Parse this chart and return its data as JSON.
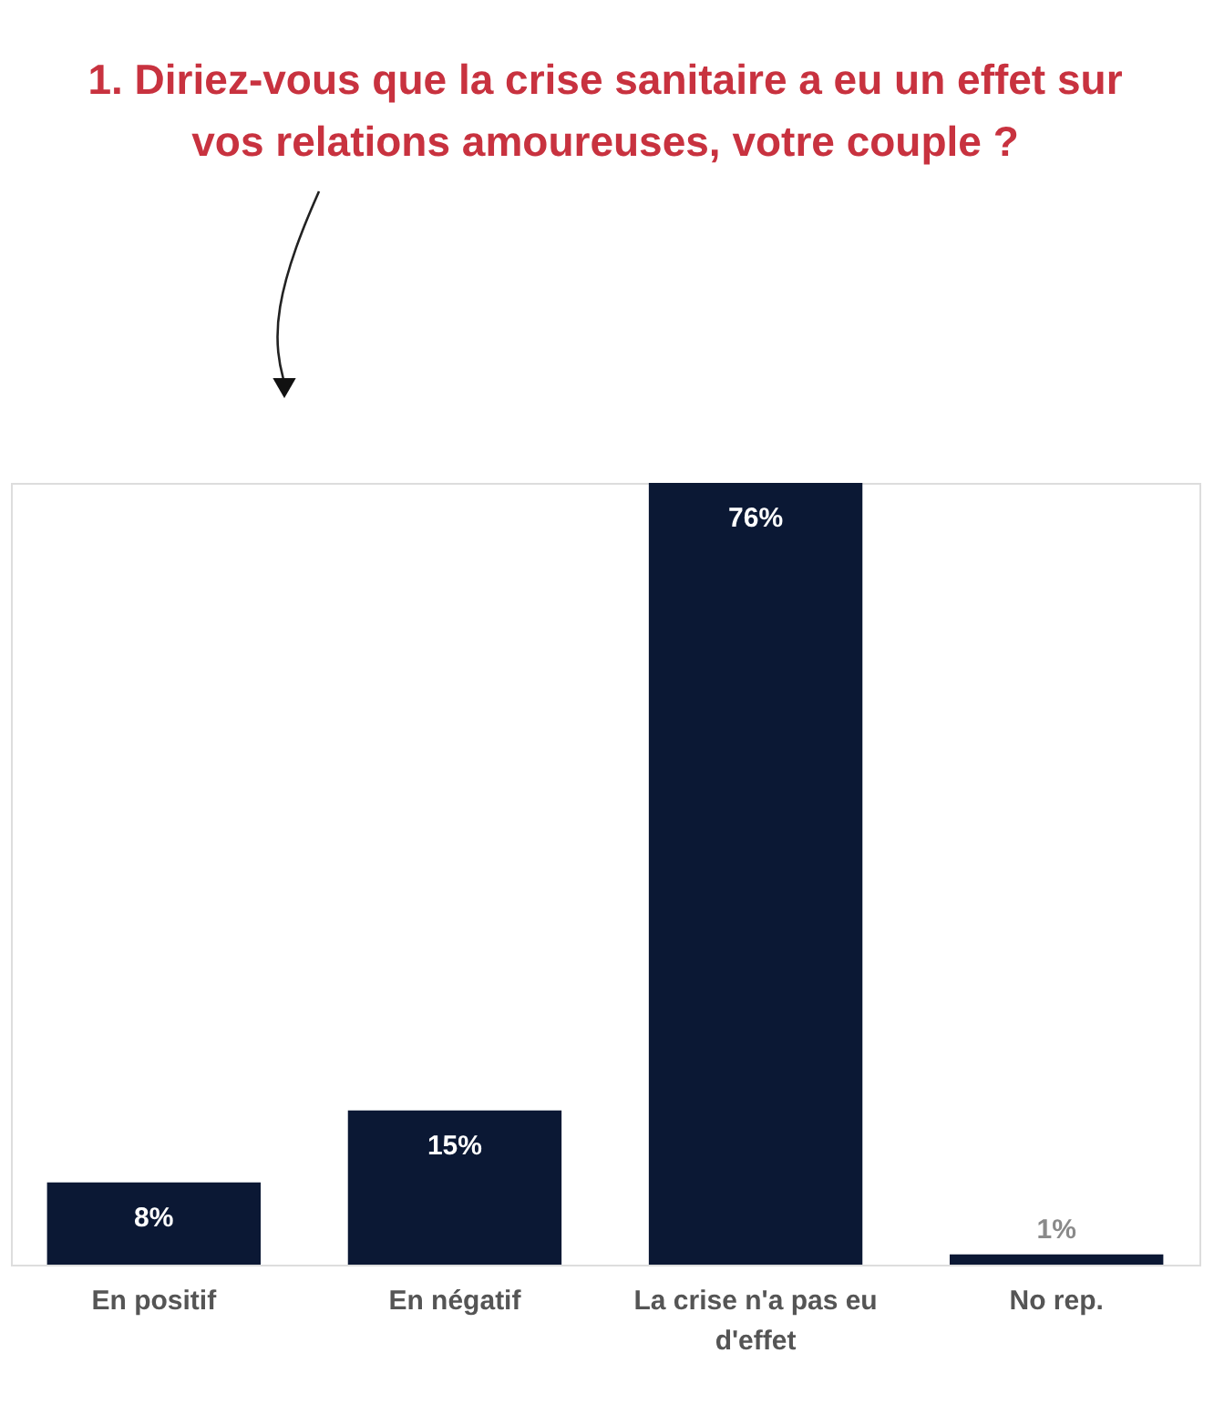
{
  "chart_data": {
    "type": "bar",
    "title": "1. Diriez-vous que la crise sanitaire a eu un effet sur vos relations amoureuses, votre couple ?",
    "categories": [
      "En positif",
      "En négatif",
      "La crise n'a pas eu d'effet",
      "No rep."
    ],
    "values": [
      8,
      15,
      76,
      1
    ],
    "value_labels": [
      "8%",
      "15%",
      "76%",
      "1%"
    ],
    "color": "#0b1834",
    "grid": false
  }
}
